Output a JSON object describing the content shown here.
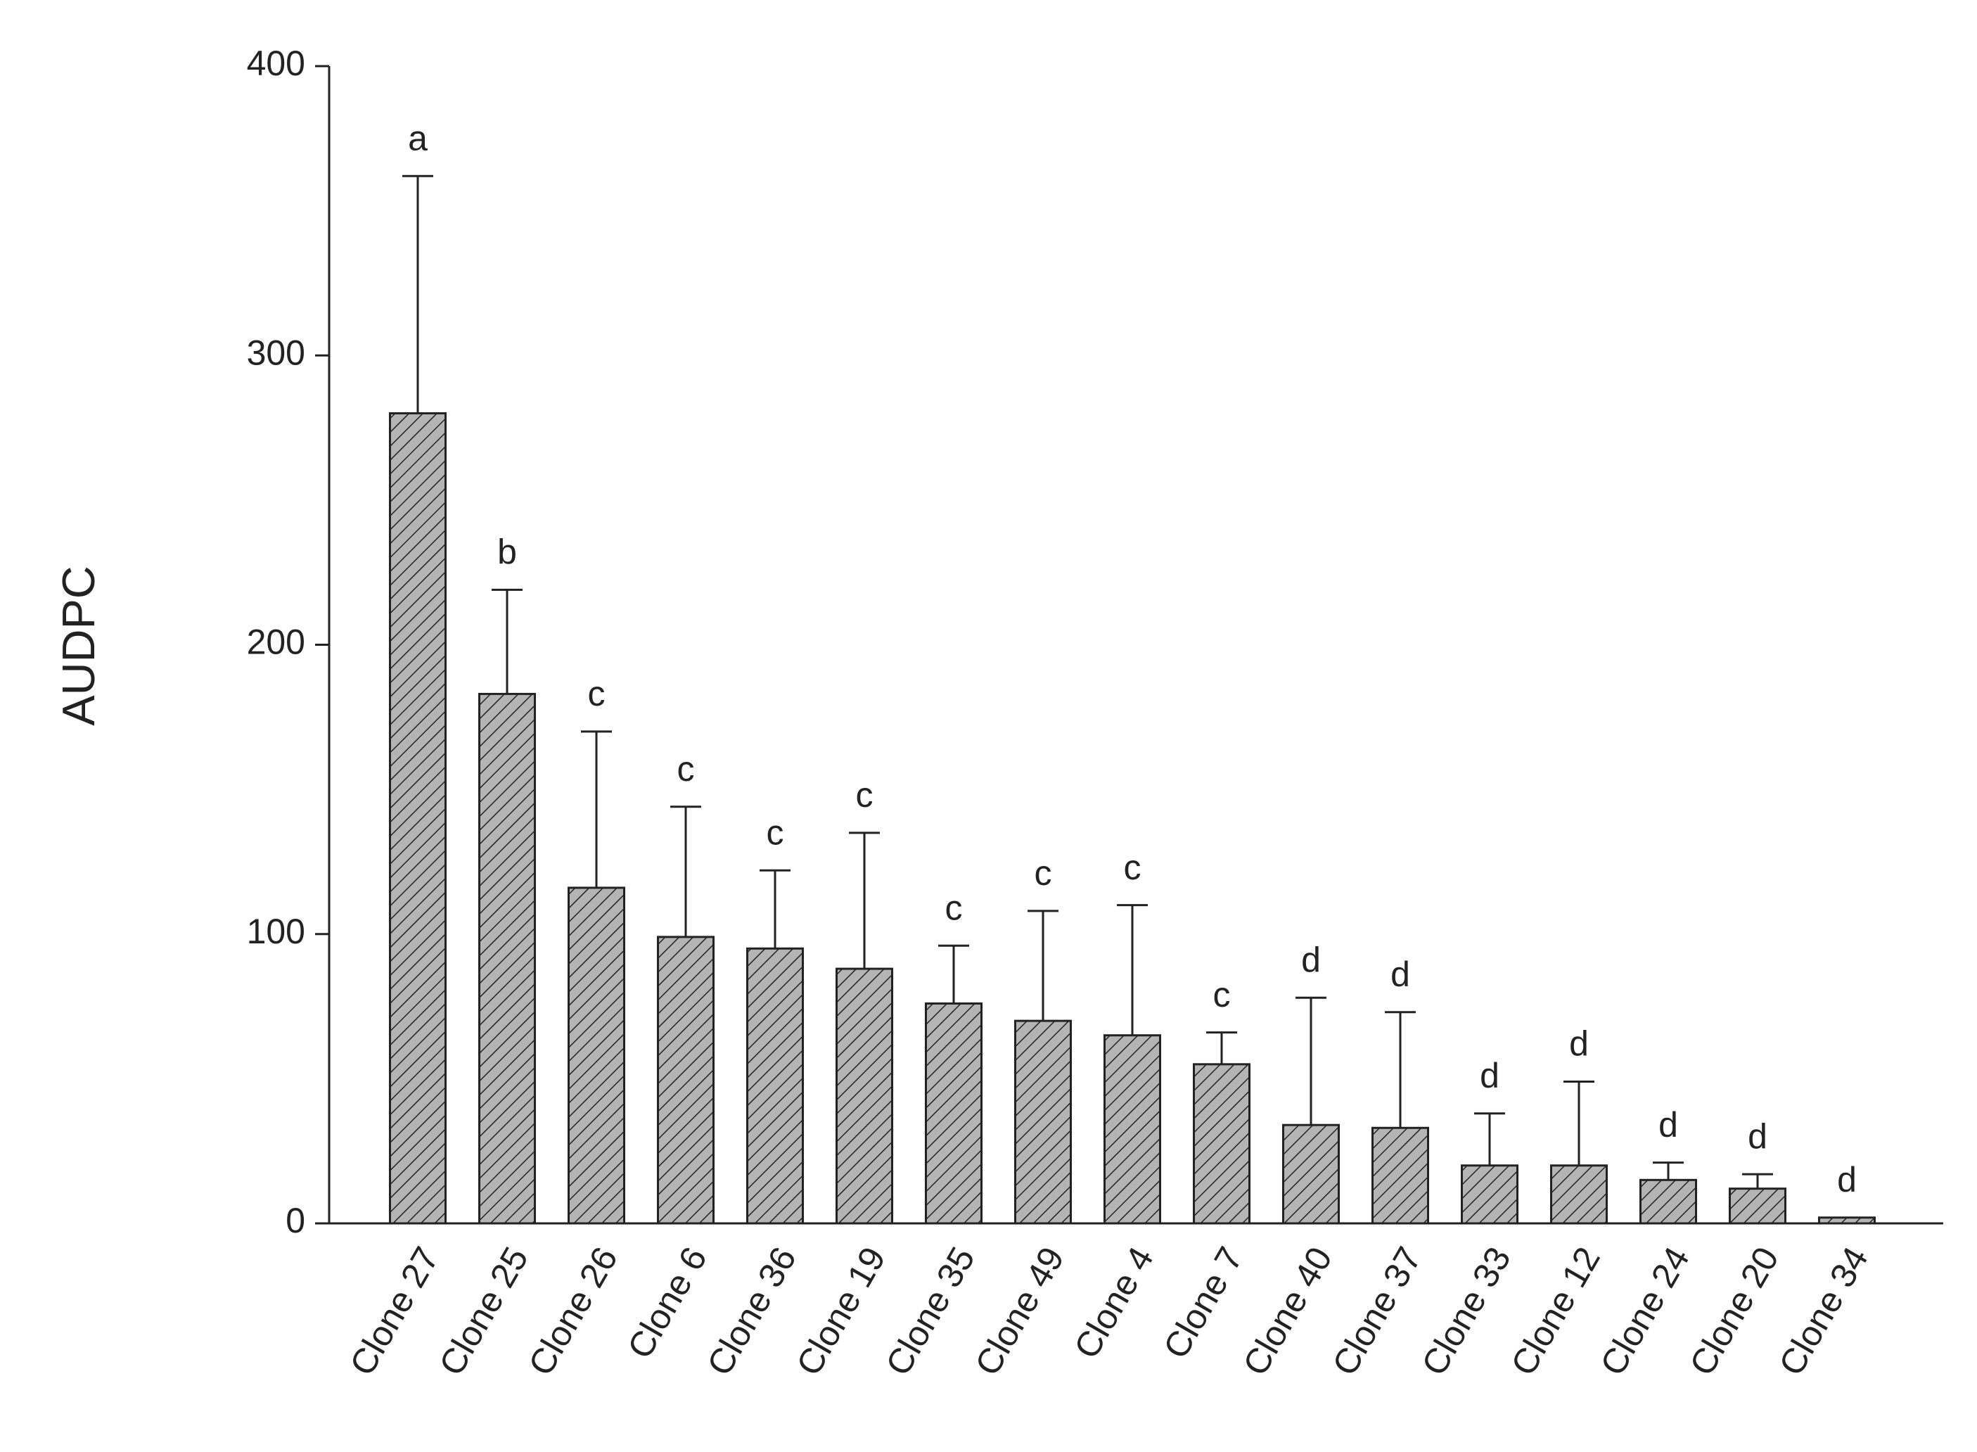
{
  "chart_data": {
    "type": "bar",
    "y_label": "AUDPC",
    "categories": [
      "Clone 27",
      "Clone 25",
      "Clone 26",
      "Clone 6",
      "Clone 36",
      "Clone 19",
      "Clone 35",
      "Clone 49",
      "Clone 4",
      "Clone 7",
      "Clone 40",
      "Clone 37",
      "Clone 33",
      "Clone 12",
      "Clone 24",
      "Clone 20",
      "Clone 34"
    ],
    "values": [
      280,
      183,
      116,
      99,
      95,
      88,
      76,
      70,
      65,
      55,
      34,
      33,
      20,
      20,
      15,
      12,
      2
    ],
    "errors": [
      82,
      36,
      54,
      45,
      27,
      47,
      20,
      38,
      45,
      11,
      44,
      40,
      18,
      29,
      6,
      5,
      0
    ],
    "letters": [
      "a",
      "b",
      "c",
      "c",
      "c",
      "c",
      "c",
      "c",
      "c",
      "c",
      "d",
      "d",
      "d",
      "d",
      "d",
      "d",
      "d"
    ],
    "color": "#b4b4b4",
    "ylim": [
      0,
      400
    ],
    "yticks": [
      0,
      100,
      200,
      300,
      400
    ]
  }
}
